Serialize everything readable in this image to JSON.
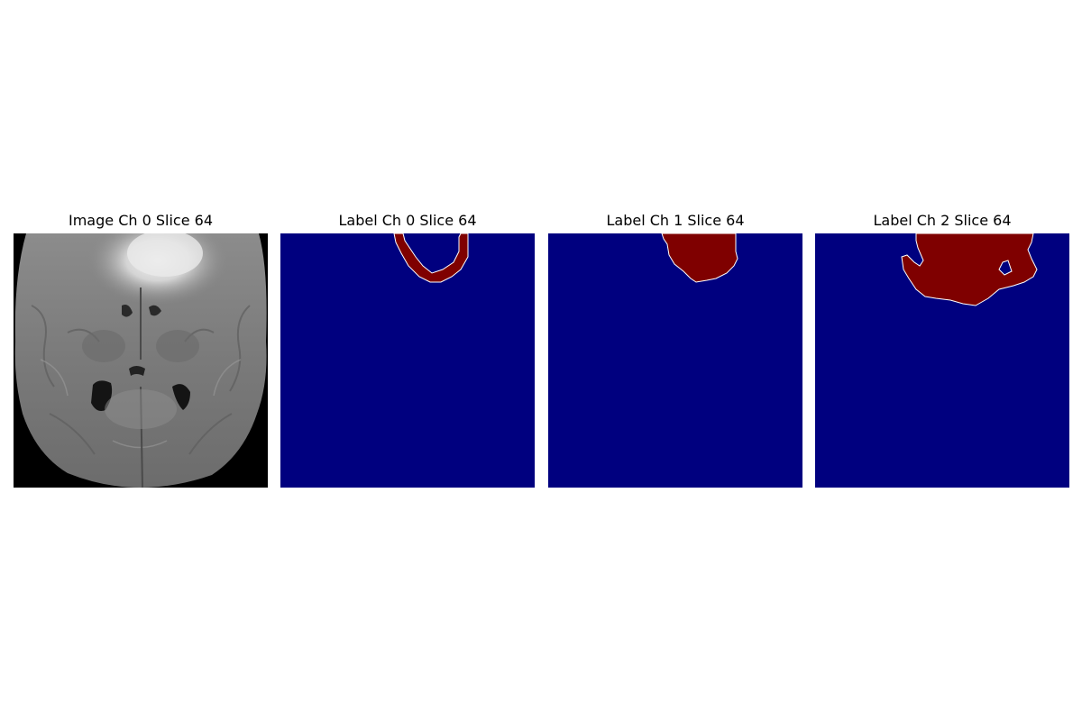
{
  "figure": {
    "panels": [
      {
        "title": "Image Ch 0 Slice 64",
        "kind": "grayscale-mri-axial-slice"
      },
      {
        "title": "Label Ch 0 Slice 64",
        "kind": "segmentation-mask"
      },
      {
        "title": "Label Ch 1 Slice 64",
        "kind": "segmentation-mask"
      },
      {
        "title": "Label Ch 2 Slice 64",
        "kind": "segmentation-mask"
      }
    ],
    "colors": {
      "mask_background": "#00007f",
      "mask_foreground": "#7f0000",
      "mask_edge": "#ffffff",
      "scan_background": "#000000",
      "figure_background": "#ffffff"
    }
  }
}
